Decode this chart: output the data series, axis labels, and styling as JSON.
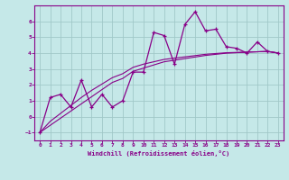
{
  "xlabel": "Windchill (Refroidissement éolien,°C)",
  "bg_color": "#c5e8e8",
  "grid_color": "#a0c8c8",
  "line_color": "#880088",
  "x_data": [
    0,
    1,
    2,
    3,
    4,
    5,
    6,
    7,
    8,
    9,
    10,
    11,
    12,
    13,
    14,
    15,
    16,
    17,
    18,
    19,
    20,
    21,
    22,
    23
  ],
  "y_main": [
    -1.0,
    1.2,
    1.4,
    0.6,
    2.3,
    0.6,
    1.4,
    0.6,
    1.0,
    2.8,
    2.8,
    5.3,
    5.1,
    3.3,
    5.8,
    6.6,
    5.4,
    5.5,
    4.4,
    4.3,
    4.0,
    4.7,
    4.1,
    4.0
  ],
  "y_line1": [
    -1.0,
    -0.55,
    -0.1,
    0.35,
    0.8,
    1.25,
    1.7,
    2.15,
    2.4,
    2.85,
    3.05,
    3.25,
    3.45,
    3.55,
    3.65,
    3.75,
    3.85,
    3.92,
    3.99,
    4.02,
    4.05,
    4.08,
    4.11,
    4.0
  ],
  "y_line2": [
    -1.0,
    -0.3,
    0.2,
    0.7,
    1.2,
    1.65,
    2.05,
    2.45,
    2.7,
    3.1,
    3.3,
    3.45,
    3.6,
    3.68,
    3.76,
    3.84,
    3.92,
    3.97,
    4.02,
    4.04,
    4.06,
    4.08,
    4.1,
    4.0
  ],
  "xlim": [
    -0.5,
    23.5
  ],
  "ylim": [
    -1.5,
    7.0
  ],
  "yticks": [
    -1,
    0,
    1,
    2,
    3,
    4,
    5,
    6
  ],
  "xticks": [
    0,
    1,
    2,
    3,
    4,
    5,
    6,
    7,
    8,
    9,
    10,
    11,
    12,
    13,
    14,
    15,
    16,
    17,
    18,
    19,
    20,
    21,
    22,
    23
  ]
}
